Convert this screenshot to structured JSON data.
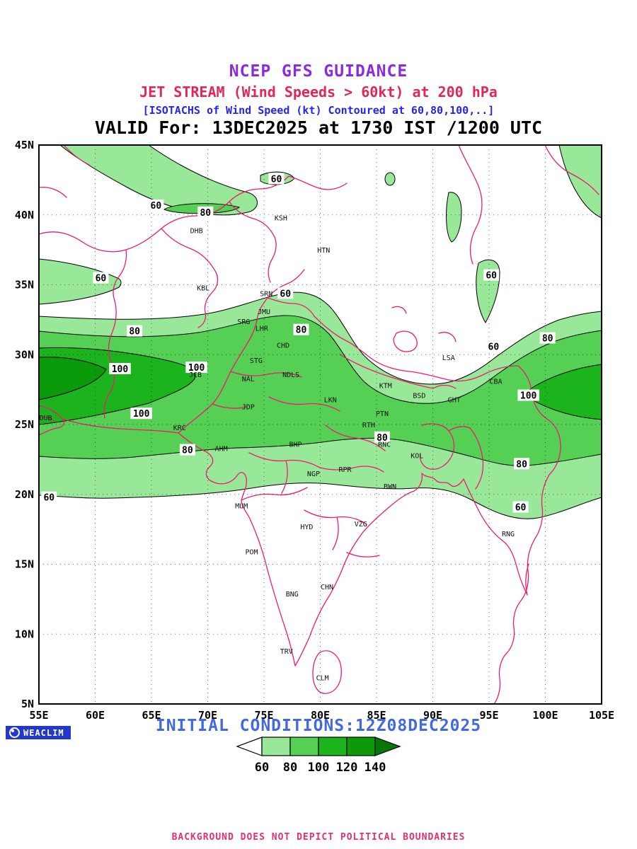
{
  "header": {
    "line1": "NCEP GFS GUIDANCE",
    "line2": "JET STREAM (Wind Speeds > 60kt) at 200 hPa",
    "line3": "[ISOTACHS of Wind Speed (kt) Contoured at 60,80,100,..]",
    "line4": "VALID For: 13DEC2025 at 1730 IST /1200 UTC"
  },
  "colors": {
    "title1": "#8a2be2",
    "title2": "#e02858",
    "title3": "#2525ee",
    "boundary": "#ef1a70",
    "initial": "#4169e1",
    "disclaimer": "#e8306c",
    "badge_bg": "#2238cc",
    "fill60": "#99e899",
    "fill80": "#55d055",
    "fill100": "#1cb41c",
    "fill120": "#0a9a0a",
    "fill140": "#047804"
  },
  "map": {
    "lon_ticks": [
      {
        "label": "55E",
        "lon": 55
      },
      {
        "label": "60E",
        "lon": 60
      },
      {
        "label": "65E",
        "lon": 65
      },
      {
        "label": "70E",
        "lon": 70
      },
      {
        "label": "75E",
        "lon": 75
      },
      {
        "label": "80E",
        "lon": 80
      },
      {
        "label": "85E",
        "lon": 85
      },
      {
        "label": "90E",
        "lon": 90
      },
      {
        "label": "95E",
        "lon": 95
      },
      {
        "label": "100E",
        "lon": 100
      },
      {
        "label": "105E",
        "lon": 105
      }
    ],
    "lat_ticks": [
      {
        "label": "45N",
        "lat": 45
      },
      {
        "label": "40N",
        "lat": 40
      },
      {
        "label": "35N",
        "lat": 35
      },
      {
        "label": "30N",
        "lat": 30
      },
      {
        "label": "25N",
        "lat": 25
      },
      {
        "label": "20N",
        "lat": 20
      },
      {
        "label": "15N",
        "lat": 15
      },
      {
        "label": "10N",
        "lat": 10
      },
      {
        "label": "5N",
        "lat": 5
      }
    ],
    "contour_labels": [
      {
        "v": "60",
        "lon": 65.4,
        "lat": 40.7
      },
      {
        "v": "80",
        "lon": 69.8,
        "lat": 40.2
      },
      {
        "v": "60",
        "lon": 76.1,
        "lat": 42.6
      },
      {
        "v": "60",
        "lon": 60.5,
        "lat": 35.5
      },
      {
        "v": "60",
        "lon": 76.9,
        "lat": 34.4
      },
      {
        "v": "60",
        "lon": 95.2,
        "lat": 35.7
      },
      {
        "v": "80",
        "lon": 63.5,
        "lat": 31.7
      },
      {
        "v": "80",
        "lon": 78.3,
        "lat": 31.8
      },
      {
        "v": "60",
        "lon": 95.4,
        "lat": 30.6
      },
      {
        "v": "80",
        "lon": 100.2,
        "lat": 31.2
      },
      {
        "v": "100",
        "lon": 62.2,
        "lat": 29.0
      },
      {
        "v": "100",
        "lon": 69.0,
        "lat": 29.1
      },
      {
        "v": "100",
        "lon": 64.1,
        "lat": 25.8
      },
      {
        "v": "100",
        "lon": 98.5,
        "lat": 27.1
      },
      {
        "v": "80",
        "lon": 68.2,
        "lat": 23.2
      },
      {
        "v": "80",
        "lon": 85.5,
        "lat": 24.1
      },
      {
        "v": "80",
        "lon": 97.9,
        "lat": 22.2
      },
      {
        "v": "60",
        "lon": 55.9,
        "lat": 19.8
      },
      {
        "v": "60",
        "lon": 97.8,
        "lat": 19.1
      }
    ],
    "cities": [
      {
        "code": "DHB",
        "lon": 69.0,
        "lat": 38.7
      },
      {
        "code": "KSH",
        "lon": 76.5,
        "lat": 39.6
      },
      {
        "code": "HTN",
        "lon": 80.3,
        "lat": 37.3
      },
      {
        "code": "KBL",
        "lon": 69.6,
        "lat": 34.6
      },
      {
        "code": "SRN",
        "lon": 75.2,
        "lat": 34.2
      },
      {
        "code": "JMU",
        "lon": 75.0,
        "lat": 32.9
      },
      {
        "code": "SRG",
        "lon": 73.2,
        "lat": 32.2
      },
      {
        "code": "LHR",
        "lon": 74.8,
        "lat": 31.7
      },
      {
        "code": "CHD",
        "lon": 76.7,
        "lat": 30.5
      },
      {
        "code": "STG",
        "lon": 74.3,
        "lat": 29.4
      },
      {
        "code": "NDLS",
        "lon": 77.4,
        "lat": 28.4
      },
      {
        "code": "NAL",
        "lon": 73.6,
        "lat": 28.1
      },
      {
        "code": "JCB",
        "lon": 68.9,
        "lat": 28.4
      },
      {
        "code": "JDP",
        "lon": 73.6,
        "lat": 26.1
      },
      {
        "code": "LKN",
        "lon": 80.9,
        "lat": 26.6
      },
      {
        "code": "KTM",
        "lon": 85.8,
        "lat": 27.6
      },
      {
        "code": "LSA",
        "lon": 91.4,
        "lat": 29.6
      },
      {
        "code": "BSD",
        "lon": 88.8,
        "lat": 26.9
      },
      {
        "code": "GHT",
        "lon": 91.9,
        "lat": 26.6
      },
      {
        "code": "CBA",
        "lon": 95.6,
        "lat": 27.9
      },
      {
        "code": "DUB",
        "lon": 55.6,
        "lat": 25.3
      },
      {
        "code": "KRC",
        "lon": 67.5,
        "lat": 24.6
      },
      {
        "code": "AHM",
        "lon": 71.2,
        "lat": 23.1
      },
      {
        "code": "BHP",
        "lon": 77.8,
        "lat": 23.4
      },
      {
        "code": "PTN",
        "lon": 85.5,
        "lat": 25.6
      },
      {
        "code": "RTH",
        "lon": 84.3,
        "lat": 24.8
      },
      {
        "code": "RNC",
        "lon": 85.7,
        "lat": 23.4
      },
      {
        "code": "KOL",
        "lon": 88.6,
        "lat": 22.6
      },
      {
        "code": "NGP",
        "lon": 79.4,
        "lat": 21.3
      },
      {
        "code": "RPR",
        "lon": 82.2,
        "lat": 21.6
      },
      {
        "code": "BWN",
        "lon": 86.2,
        "lat": 20.4
      },
      {
        "code": "MUM",
        "lon": 73.0,
        "lat": 19.0
      },
      {
        "code": "HYD",
        "lon": 78.8,
        "lat": 17.5
      },
      {
        "code": "VZG",
        "lon": 83.6,
        "lat": 17.7
      },
      {
        "code": "POM",
        "lon": 73.9,
        "lat": 15.7
      },
      {
        "code": "CHN",
        "lon": 80.6,
        "lat": 13.2
      },
      {
        "code": "BNG",
        "lon": 77.5,
        "lat": 12.7
      },
      {
        "code": "RNG",
        "lon": 96.7,
        "lat": 17.0
      },
      {
        "code": "TRV",
        "lon": 77.0,
        "lat": 8.6
      },
      {
        "code": "CLM",
        "lon": 80.2,
        "lat": 6.7
      }
    ]
  },
  "footer": {
    "initial_conditions": "INITIAL CONDITIONS:12Z08DEC2025",
    "logo_text": "WEACLIM",
    "colorbar": {
      "labels": [
        "60",
        "80",
        "100",
        "120",
        "140"
      ],
      "segment_colors": [
        "#ffffff",
        "#99e899",
        "#55d055",
        "#1cb41c",
        "#0a9a0a",
        "#047804"
      ]
    },
    "disclaimer": "BACKGROUND DOES NOT DEPICT POLITICAL BOUNDARIES"
  },
  "chart_data": {
    "type": "heatmap",
    "subtype": "filled-isotach-contour-map",
    "title": "JET STREAM (Wind Speeds > 60kt) at 200 hPa",
    "model": "NCEP GFS",
    "variable": "wind speed (kt)",
    "pressure_level": "200 hPa",
    "valid": "13DEC2025 at 1730 IST /1200 UTC",
    "initialized": "12Z08DEC2025",
    "contour_levels_kt": [
      60,
      80,
      100,
      120,
      140
    ],
    "lon_range": [
      55,
      105
    ],
    "lat_range": [
      5,
      45
    ],
    "xtick_labels": [
      "55E",
      "60E",
      "65E",
      "70E",
      "75E",
      "80E",
      "85E",
      "90E",
      "95E",
      "100E",
      "105E"
    ],
    "ytick_labels": [
      "5N",
      "10N",
      "15N",
      "20N",
      "25N",
      "30N",
      "35N",
      "40N",
      "45N"
    ],
    "legend_position": "bottom-center",
    "grid": "dotted 5-degree graticule",
    "features": [
      "continuous >60kt subtropical jet band spanning 55E-105E between about 20N and 33N",
      "western 100kt jet core over Pakistan / Arabian Sea near 57-70E, 25-30N",
      "eastern 100kt jet core over NE India / Myanmar / China near 98-105E, 26-29N",
      "secondary 60-80kt band across Central Asia near 39-45N",
      "small 60kt patches near 91-93E 38-42N and the top-right corner"
    ]
  }
}
